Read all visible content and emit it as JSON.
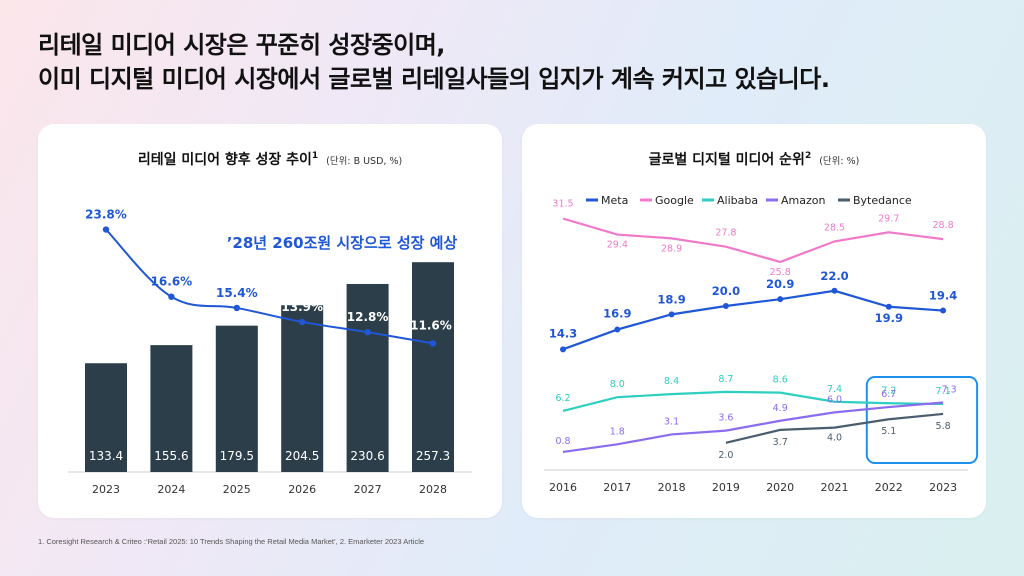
{
  "headline": {
    "line1": "리테일 미디어 시장은 꾸준히 성장중이며,",
    "line2": "이미 디지털 미디어 시장에서 글로벌 리테일사들의 입지가 계속 커지고 있습니다."
  },
  "footnote": "1. Coresight Research & Criteo :‘Retail 2025: 10 Trends Shaping the Retail Media Market’, 2. Emarketer 2023 Article",
  "colors": {
    "bar": "#2c3e4a",
    "line_left": "#1f57d6",
    "Meta": "#1f57d6",
    "Google": "#f07ac9",
    "Alibaba": "#2ccfc0",
    "Amazon": "#8b6cf0",
    "Bytedance": "#4a5d6e",
    "highlight": "#1e90f0"
  },
  "chart_data": [
    {
      "type": "bar",
      "title": "리테일 미디어 향후 성장 추이",
      "title_sup": "1",
      "unit": "(단위: B USD, %)",
      "annotation": "’28년 260조원 시장으로 성장 예상",
      "categories": [
        "2023",
        "2024",
        "2025",
        "2026",
        "2027",
        "2028"
      ],
      "series": [
        {
          "type": "bar",
          "values": [
            133.4,
            155.6,
            179.5,
            204.5,
            230.6,
            257.3
          ],
          "labels": [
            "133.4",
            "155.6",
            "179.5",
            "204.5",
            "230.6",
            "257.3"
          ]
        },
        {
          "type": "line",
          "values": [
            23.8,
            16.6,
            15.4,
            13.9,
            12.8,
            11.6
          ],
          "labels": [
            "23.8%",
            "16.6%",
            "15.4%",
            "13.9%",
            "12.8%",
            "11.6%"
          ]
        }
      ],
      "ylim": [
        0,
        260
      ],
      "y2lim": [
        8,
        26
      ]
    },
    {
      "type": "line",
      "title": "글로벌 디지털 미디어 순위",
      "title_sup": "2",
      "unit": "(단위: %)",
      "x": [
        "2016",
        "2017",
        "2018",
        "2019",
        "2020",
        "2021",
        "2022",
        "2023"
      ],
      "legend_position": "top",
      "series": [
        {
          "name": "Meta",
          "values": [
            14.3,
            16.9,
            18.9,
            20.0,
            20.9,
            22.0,
            19.9,
            19.4
          ],
          "labels": [
            "14.3",
            "16.9",
            "18.9",
            "20.0",
            "20.9",
            "22.0",
            "19.9",
            "19.4"
          ]
        },
        {
          "name": "Google",
          "values": [
            31.5,
            29.4,
            28.9,
            27.8,
            25.8,
            28.5,
            29.7,
            28.8
          ],
          "labels": [
            "31.5",
            "29.4",
            "28.9",
            "27.8",
            "25.8",
            "28.5",
            "29.7",
            "28.8"
          ]
        },
        {
          "name": "Alibaba",
          "values": [
            6.2,
            8.0,
            8.4,
            8.7,
            8.6,
            7.4,
            7.2,
            7.1
          ],
          "labels": [
            "6.2",
            "8.0",
            "8.4",
            "8.7",
            "8.6",
            "7.4",
            "7.2",
            "7.1"
          ]
        },
        {
          "name": "Amazon",
          "values": [
            0.8,
            1.8,
            3.1,
            3.6,
            4.9,
            6.0,
            6.7,
            7.3
          ],
          "labels": [
            "0.8",
            "1.8",
            "3.1",
            "3.6",
            "4.9",
            "6.0",
            "6.7",
            "7.3"
          ]
        },
        {
          "name": "Bytedance",
          "values": [
            null,
            null,
            null,
            2.0,
            3.7,
            4.0,
            5.1,
            5.8
          ],
          "labels": [
            null,
            null,
            null,
            "2.0",
            "3.7",
            "4.0",
            "5.1",
            "5.8"
          ]
        }
      ],
      "highlight_x": [
        "2022",
        "2023"
      ],
      "ylim": [
        0,
        33
      ]
    }
  ]
}
